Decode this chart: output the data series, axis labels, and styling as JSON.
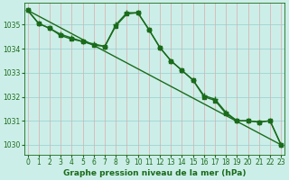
{
  "xlabel": "Graphe pression niveau de la mer (hPa)",
  "ylim": [
    1029.6,
    1035.9
  ],
  "xlim": [
    -0.3,
    23.3
  ],
  "yticks": [
    1030,
    1031,
    1032,
    1033,
    1034,
    1035
  ],
  "xticks": [
    0,
    1,
    2,
    3,
    4,
    5,
    6,
    7,
    8,
    9,
    10,
    11,
    12,
    13,
    14,
    15,
    16,
    17,
    18,
    19,
    20,
    21,
    22,
    23
  ],
  "bg_color": "#cceee8",
  "grid_color": "#99cccc",
  "line_color": "#1a6b1a",
  "series": [
    {
      "x": [
        0,
        1,
        2,
        3,
        4,
        5,
        6,
        7,
        8,
        9,
        10,
        11,
        12,
        13,
        14,
        15,
        16,
        17,
        18,
        19,
        20,
        21,
        22,
        23
      ],
      "y": [
        1035.6,
        1035.05,
        1034.85,
        1034.55,
        1034.4,
        1034.3,
        1034.15,
        1034.1,
        1034.95,
        1035.45,
        1035.5,
        1034.8,
        1034.05,
        1033.5,
        1033.1,
        1032.7,
        1032.0,
        1031.85,
        1031.3,
        1031.0,
        1031.0,
        1030.95,
        1031.0,
        1030.0
      ],
      "marker": "s",
      "ms": 2.5,
      "lw": 1.0
    },
    {
      "x": [
        0,
        1,
        2,
        3,
        4,
        5,
        6,
        7,
        8,
        9,
        10,
        11,
        12,
        13,
        14,
        15,
        16,
        17,
        18,
        19,
        20,
        21,
        22,
        23
      ],
      "y": [
        1035.6,
        1035.05,
        1034.85,
        1034.6,
        1034.45,
        1034.3,
        1034.2,
        1034.1,
        1035.0,
        1035.5,
        1035.5,
        1034.8,
        1034.05,
        1033.5,
        1033.1,
        1032.7,
        1032.05,
        1031.9,
        1031.35,
        1031.0,
        1031.0,
        1030.95,
        1031.0,
        1030.0
      ],
      "marker": "+",
      "ms": 4.0,
      "lw": 1.0
    },
    {
      "x": [
        0,
        23
      ],
      "y": [
        1035.6,
        1030.0
      ],
      "marker": null,
      "ms": 0,
      "lw": 1.0
    }
  ],
  "font_color": "#1a6b1a",
  "tick_fontsize": 5.5,
  "label_fontsize": 6.5
}
